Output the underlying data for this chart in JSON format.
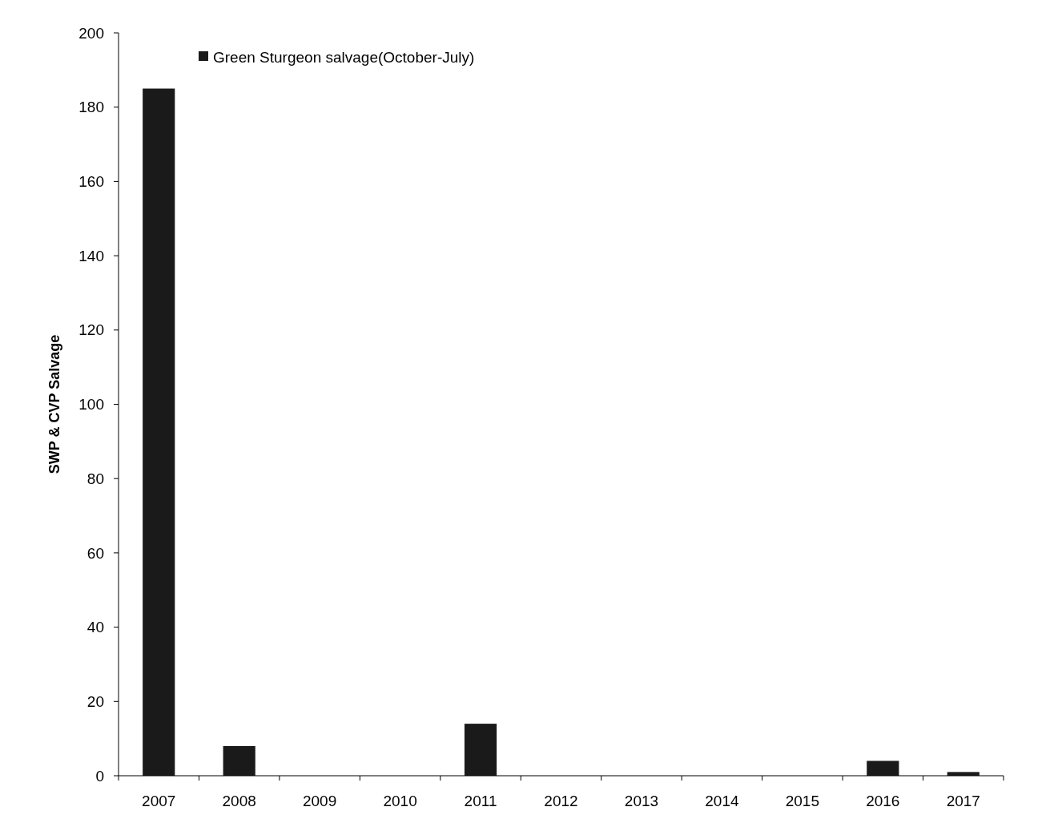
{
  "chart_data": {
    "type": "bar",
    "ylabel": "SWP & CVP Salvage",
    "categories": [
      "2007",
      "2008",
      "2009",
      "2010",
      "2011",
      "2012",
      "2013",
      "2014",
      "2015",
      "2016",
      "2017"
    ],
    "series": [
      {
        "name": "Green Sturgeon salvage(October-July)",
        "color": "#1a1a1a",
        "values": [
          185,
          8,
          0,
          0,
          14,
          0,
          0,
          0,
          0,
          4,
          1
        ]
      }
    ],
    "ylim": [
      0,
      200
    ],
    "yticks": [
      0,
      20,
      40,
      60,
      80,
      100,
      120,
      140,
      160,
      180,
      200
    ],
    "grid": false,
    "legend": "top left"
  }
}
